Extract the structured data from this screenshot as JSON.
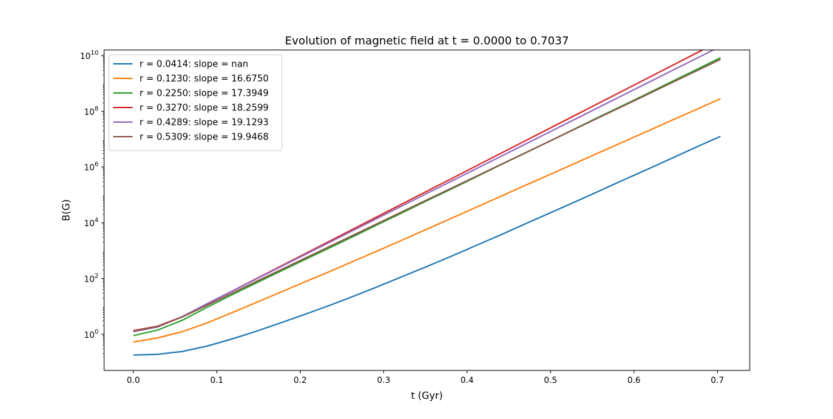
{
  "chart_data": {
    "type": "line",
    "title": "Evolution of magnetic field at t = 0.0000 to 0.7037",
    "xlabel": "t (Gyr)",
    "ylabel": "B(G)",
    "xlim": [
      -0.035,
      0.7387
    ],
    "ylim_log10": [
      -1.3,
      10.2
    ],
    "yscale": "log",
    "grid": false,
    "legend_position": "upper-left",
    "x_ticks": [
      "0.0",
      "0.1",
      "0.2",
      "0.3",
      "0.4",
      "0.5",
      "0.6",
      "0.7"
    ],
    "y_ticks": [
      {
        "base": "10",
        "exp": "0"
      },
      {
        "base": "10",
        "exp": "2"
      },
      {
        "base": "10",
        "exp": "4"
      },
      {
        "base": "10",
        "exp": "6"
      },
      {
        "base": "10",
        "exp": "8"
      },
      {
        "base": "10",
        "exp": "10"
      }
    ],
    "x": [
      0.0,
      0.0293,
      0.0586,
      0.088,
      0.1173,
      0.1466,
      0.1759,
      0.2052,
      0.2346,
      0.2639,
      0.2932,
      0.3225,
      0.3518,
      0.3812,
      0.4105,
      0.4398,
      0.4691,
      0.4984,
      0.5278,
      0.5571,
      0.5864,
      0.6157,
      0.645,
      0.6744,
      0.7037
    ],
    "series": [
      {
        "name": "r = 0.0414: slope = nan",
        "color": "#1f77b4",
        "log10_values": [
          -0.75,
          -0.72,
          -0.62,
          -0.43,
          -0.18,
          0.1,
          0.4,
          0.71,
          1.03,
          1.36,
          1.71,
          2.07,
          2.43,
          2.8,
          3.18,
          3.56,
          3.95,
          4.34,
          4.73,
          5.12,
          5.52,
          5.91,
          6.31,
          6.71,
          7.1
        ]
      },
      {
        "name": "r = 0.1230: slope = 16.6750",
        "color": "#ff7f0e",
        "log10_values": [
          -0.28,
          -0.13,
          0.09,
          0.4,
          0.76,
          1.13,
          1.5,
          1.87,
          2.24,
          2.62,
          3.0,
          3.38,
          3.77,
          4.16,
          4.55,
          4.94,
          5.33,
          5.72,
          6.11,
          6.5,
          6.89,
          7.28,
          7.67,
          8.06,
          8.45
        ]
      },
      {
        "name": "r = 0.2250: slope = 17.3949",
        "color": "#2ca02c",
        "log10_values": [
          -0.05,
          0.15,
          0.5,
          0.96,
          1.4,
          1.83,
          2.25,
          2.67,
          3.09,
          3.51,
          3.94,
          4.36,
          4.79,
          5.21,
          5.64,
          6.07,
          6.49,
          6.92,
          7.35,
          7.78,
          8.2,
          8.63,
          9.06,
          9.49,
          9.92
        ]
      },
      {
        "name": "r = 0.3270: slope = 18.2599",
        "color": "#d62728",
        "log10_values": [
          0.13,
          0.29,
          0.63,
          1.08,
          1.53,
          1.98,
          2.43,
          2.88,
          3.33,
          3.78,
          4.23,
          4.68,
          5.13,
          5.58,
          6.03,
          6.48,
          6.93,
          7.38,
          7.83,
          8.28,
          8.73,
          9.18,
          9.63,
          10.08,
          10.53
        ]
      },
      {
        "name": "r = 0.4289: slope = 19.1293",
        "color": "#9467bd",
        "log10_values": [
          0.09,
          0.26,
          0.63,
          1.09,
          1.53,
          1.97,
          2.41,
          2.85,
          3.29,
          3.73,
          4.17,
          4.61,
          5.05,
          5.49,
          5.93,
          6.37,
          6.81,
          7.25,
          7.69,
          8.13,
          8.57,
          9.01,
          9.45,
          9.89,
          10.33
        ]
      },
      {
        "name": "r = 0.5309: slope = 19.9468",
        "color": "#8c564b",
        "log10_values": [
          0.11,
          0.28,
          0.62,
          1.03,
          1.46,
          1.88,
          2.3,
          2.72,
          3.14,
          3.56,
          3.98,
          4.4,
          4.82,
          5.24,
          5.66,
          6.08,
          6.5,
          6.92,
          7.34,
          7.76,
          8.18,
          8.6,
          9.02,
          9.44,
          9.86
        ]
      }
    ]
  }
}
